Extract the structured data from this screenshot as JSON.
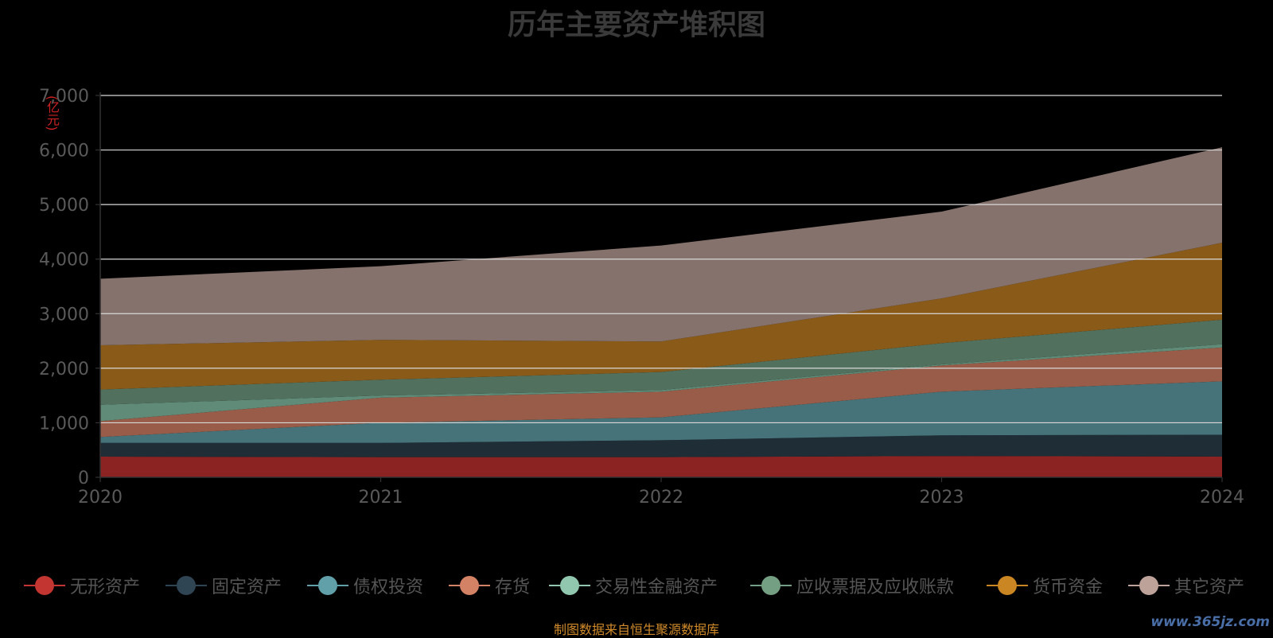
{
  "chart_data": {
    "type": "area",
    "stacked": true,
    "title": "历年主要资产堆积图",
    "unit": "(亿元)",
    "x": [
      "2020",
      "2021",
      "2022",
      "2023",
      "2024"
    ],
    "ylim": [
      0,
      7000
    ],
    "yticks": [
      "0",
      "1,000",
      "2,000",
      "3,000",
      "4,000",
      "5,000",
      "6,000",
      "7,000"
    ],
    "ytick_values": [
      0,
      1000,
      2000,
      3000,
      4000,
      5000,
      6000,
      7000
    ],
    "grid": true,
    "legend_position": "bottom",
    "series": [
      {
        "name": "无形资产",
        "color": "#c23531",
        "area_color": "#8b2323",
        "values": [
          380,
          370,
          370,
          390,
          380
        ]
      },
      {
        "name": "固定资产",
        "color": "#2f4554",
        "area_color": "#1f2d36",
        "values": [
          250,
          260,
          310,
          380,
          400
        ]
      },
      {
        "name": "债权投资",
        "color": "#61a0a8",
        "area_color": "#46737a",
        "values": [
          110,
          370,
          420,
          800,
          980
        ]
      },
      {
        "name": "存货",
        "color": "#d48265",
        "area_color": "#985c48",
        "values": [
          290,
          460,
          470,
          480,
          620
        ]
      },
      {
        "name": "交易性金融资产",
        "color": "#91c7ae",
        "area_color": "#5f8b78",
        "values": [
          300,
          40,
          30,
          20,
          60
        ]
      },
      {
        "name": "应收票据及应收账款",
        "color": "#749f83",
        "area_color": "#52705e",
        "values": [
          280,
          290,
          330,
          390,
          450
        ]
      },
      {
        "name": "货币资金",
        "color": "#ca8622",
        "area_color": "#8a5a18",
        "values": [
          810,
          730,
          560,
          820,
          1410
        ]
      },
      {
        "name": "其它资产",
        "color": "#bda29a",
        "area_color": "#85726c",
        "values": [
          1220,
          1350,
          1760,
          1590,
          1750
        ]
      }
    ]
  },
  "footer": {
    "source": "制图数据来自恒生聚源数据库",
    "watermark": "www.365jz.com"
  }
}
